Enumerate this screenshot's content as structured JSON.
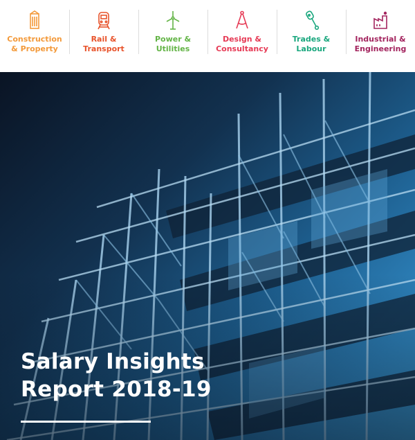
{
  "categories": [
    {
      "label": "Construction\n& Property",
      "color": "#f39a3b",
      "icon": "building-icon"
    },
    {
      "label": "Rail &\nTransport",
      "color": "#e8542c",
      "icon": "train-icon"
    },
    {
      "label": "Power &\nUtilities",
      "color": "#63b446",
      "icon": "wind-turbine-icon"
    },
    {
      "label": "Design &\nConsultancy",
      "color": "#e63a55",
      "icon": "compass-icon"
    },
    {
      "label": "Trades &\nLabour",
      "color": "#1aa77e",
      "icon": "wrench-icon"
    },
    {
      "label": "Industrial &\nEngineering",
      "color": "#a3245e",
      "icon": "factory-icon"
    }
  ],
  "report": {
    "title_line1": "Salary Insights",
    "title_line2": "Report 2018-19"
  }
}
